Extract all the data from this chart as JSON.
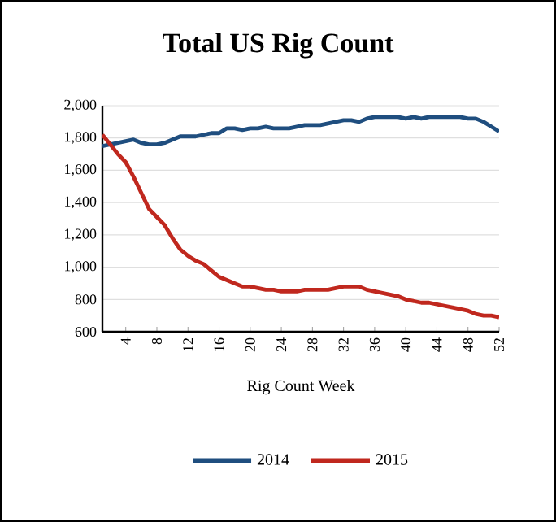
{
  "chart_data": {
    "type": "line",
    "title": "Total US Rig Count",
    "xlabel": "Rig Count Week",
    "x": [
      1,
      2,
      3,
      4,
      5,
      6,
      7,
      8,
      9,
      10,
      11,
      12,
      13,
      14,
      15,
      16,
      17,
      18,
      19,
      20,
      21,
      22,
      23,
      24,
      25,
      26,
      27,
      28,
      29,
      30,
      31,
      32,
      33,
      34,
      35,
      36,
      37,
      38,
      39,
      40,
      41,
      42,
      43,
      44,
      45,
      46,
      47,
      48,
      49,
      50,
      51,
      52
    ],
    "xlim": [
      1,
      52
    ],
    "xticks": [
      4,
      8,
      12,
      16,
      20,
      24,
      28,
      32,
      36,
      40,
      44,
      48,
      52
    ],
    "ylim": [
      600,
      2000
    ],
    "yticks": [
      {
        "value": 600,
        "label": "600"
      },
      {
        "value": 800,
        "label": "800"
      },
      {
        "value": 1000,
        "label": "1,000"
      },
      {
        "value": 1200,
        "label": "1,200"
      },
      {
        "value": 1400,
        "label": "1,400"
      },
      {
        "value": 1600,
        "label": "1,600"
      },
      {
        "value": 1800,
        "label": "1,800"
      },
      {
        "value": 2000,
        "label": "2,000"
      }
    ],
    "grid": "y",
    "legend": "bottom",
    "marker": "none",
    "line_style": "solid",
    "series": [
      {
        "name": "2014",
        "color": "#1f4e7f",
        "values": [
          1750,
          1760,
          1770,
          1780,
          1790,
          1770,
          1760,
          1760,
          1770,
          1790,
          1810,
          1810,
          1810,
          1820,
          1830,
          1830,
          1860,
          1860,
          1850,
          1860,
          1860,
          1870,
          1860,
          1860,
          1860,
          1870,
          1880,
          1880,
          1880,
          1890,
          1900,
          1910,
          1910,
          1900,
          1920,
          1930,
          1930,
          1930,
          1930,
          1920,
          1930,
          1920,
          1930,
          1930,
          1930,
          1930,
          1930,
          1920,
          1920,
          1900,
          1870,
          1840
        ]
      },
      {
        "name": "2015",
        "color": "#c0281e",
        "values": [
          1820,
          1760,
          1700,
          1650,
          1560,
          1460,
          1360,
          1310,
          1260,
          1180,
          1110,
          1070,
          1040,
          1020,
          980,
          940,
          920,
          900,
          880,
          880,
          870,
          860,
          860,
          850,
          850,
          850,
          860,
          860,
          860,
          860,
          870,
          880,
          880,
          880,
          860,
          850,
          840,
          830,
          820,
          800,
          790,
          780,
          780,
          770,
          760,
          750,
          740,
          730,
          710,
          700,
          700,
          690
        ]
      }
    ]
  }
}
